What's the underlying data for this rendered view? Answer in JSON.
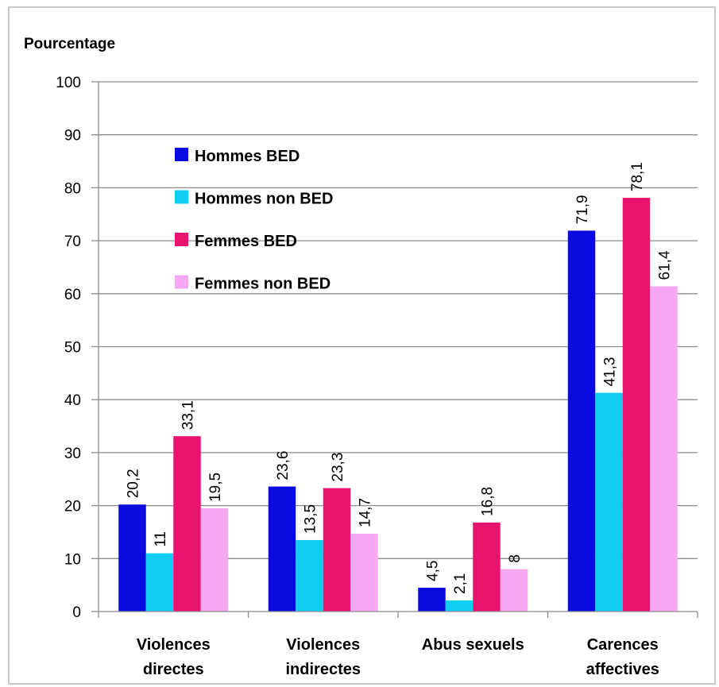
{
  "chart_data": {
    "type": "bar",
    "title": "",
    "ylabel": "Pourcentage",
    "xlabel": "",
    "ylim": [
      0,
      100
    ],
    "yticks": [
      0,
      10,
      20,
      30,
      40,
      50,
      60,
      70,
      80,
      90,
      100
    ],
    "grid": true,
    "legend_position": "top-left",
    "categories": [
      [
        "Violences",
        "directes"
      ],
      [
        "Violences",
        "indirectes"
      ],
      [
        "Abus sexuels"
      ],
      [
        "Carences",
        "affectives"
      ]
    ],
    "series": [
      {
        "name": "Hommes BED",
        "color": "#0a0adf",
        "values": [
          20.2,
          23.6,
          4.5,
          71.9
        ],
        "labels": [
          "20,2",
          "23,6",
          "4,5",
          "71,9"
        ]
      },
      {
        "name": "Hommes non BED",
        "color": "#12cdf2",
        "values": [
          11,
          13.5,
          2.1,
          41.3
        ],
        "labels": [
          "11",
          "13,5",
          "2,1",
          "41,3"
        ]
      },
      {
        "name": "Femmes BED",
        "color": "#e8126f",
        "values": [
          33.1,
          23.3,
          16.8,
          78.1
        ],
        "labels": [
          "33,1",
          "23,3",
          "16,8",
          "78,1"
        ]
      },
      {
        "name": "Femmes non BED",
        "color": "#f7a8f3",
        "values": [
          19.5,
          14.7,
          8,
          61.4
        ],
        "labels": [
          "19,5",
          "14,7",
          "8",
          "61,4"
        ]
      }
    ]
  }
}
